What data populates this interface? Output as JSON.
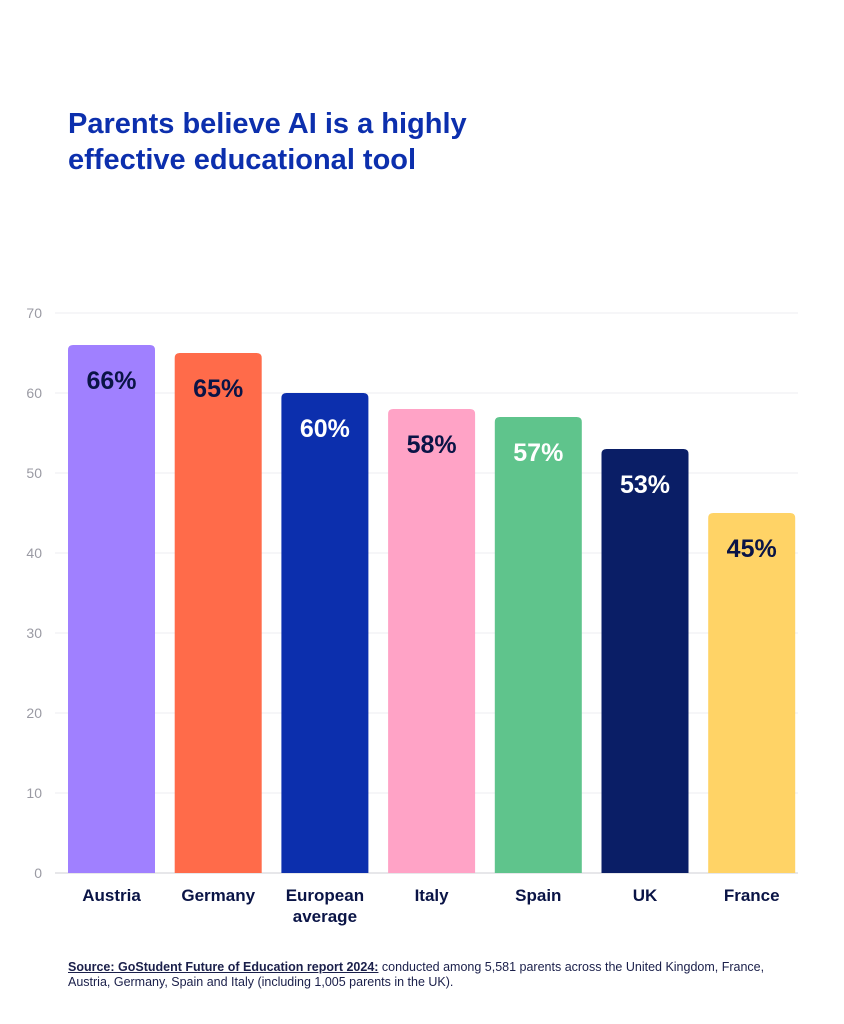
{
  "chart_data": {
    "type": "bar",
    "title": "Parents believe AI is a highly effective educational tool",
    "categories": [
      "Austria",
      "Germany",
      "European average",
      "Italy",
      "Spain",
      "UK",
      "France"
    ],
    "category_lines": [
      [
        "Austria"
      ],
      [
        "Germany"
      ],
      [
        "European",
        "average"
      ],
      [
        "Italy"
      ],
      [
        "Spain"
      ],
      [
        "UK"
      ],
      [
        "France"
      ]
    ],
    "values": [
      66,
      65,
      60,
      58,
      57,
      53,
      45
    ],
    "data_labels": [
      "66%",
      "65%",
      "60%",
      "58%",
      "57%",
      "53%",
      "45%"
    ],
    "colors": [
      "#a080ff",
      "#ff6b4a",
      "#0c2fad",
      "#ffa3c6",
      "#5fc48c",
      "#0a1e66",
      "#ffd366"
    ],
    "label_colors": [
      "#0a1446",
      "#0a1446",
      "#ffffff",
      "#0a1446",
      "#ffffff",
      "#ffffff",
      "#0a1446"
    ],
    "yticks": [
      0,
      10,
      20,
      30,
      40,
      50,
      60,
      70
    ],
    "ylim": [
      0,
      70
    ],
    "xlabel": "",
    "ylabel": "",
    "grid": true
  },
  "source": {
    "label": "Source: GoStudent Future of Education report 2024:",
    "text": " conducted among 5,581 parents across the United Kingdom, France, Austria, Germany, Spain and Italy (including 1,005 parents in the UK)."
  }
}
